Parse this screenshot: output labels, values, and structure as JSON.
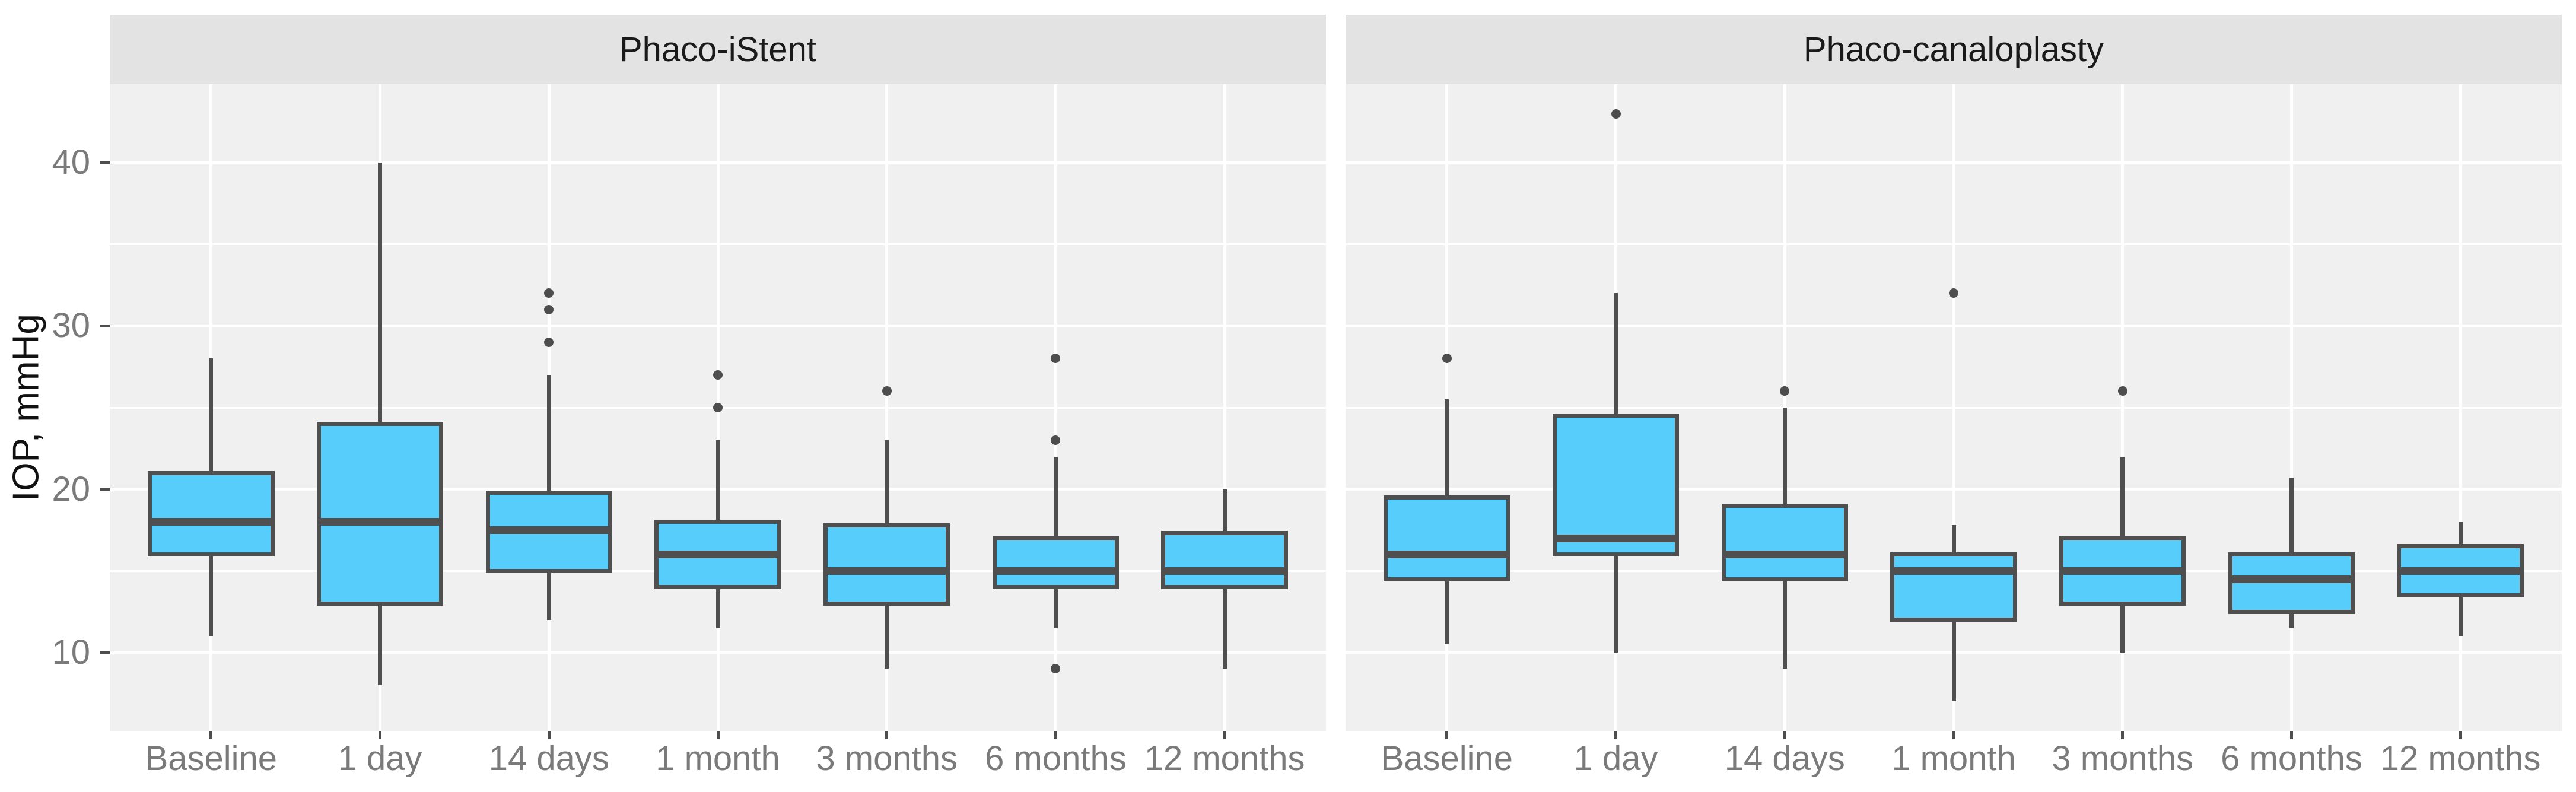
{
  "chart_data": {
    "type": "boxplot",
    "title": "",
    "xlabel": "",
    "ylabel": "IOP, mmHg",
    "categories": [
      "Baseline",
      "1 day",
      "14 days",
      "1 month",
      "3 months",
      "6 months",
      "12 months"
    ],
    "y_ticks": [
      10,
      20,
      30,
      40
    ],
    "y_minor_ticks": [
      15,
      25,
      35
    ],
    "ylim": [
      5.2,
      44.8
    ],
    "grid": true,
    "legend": "none",
    "facets": [
      {
        "label": "Phaco-iStent",
        "boxes": [
          {
            "category": "Baseline",
            "min": 11,
            "q1": 16,
            "median": 18,
            "q3": 21,
            "max": 28,
            "outliers": []
          },
          {
            "category": "1 day",
            "min": 8,
            "q1": 13,
            "median": 18,
            "q3": 24,
            "max": 40,
            "outliers": []
          },
          {
            "category": "14 days",
            "min": 12,
            "q1": 15,
            "median": 17.5,
            "q3": 19.8,
            "max": 27,
            "outliers": [
              29,
              31,
              32
            ]
          },
          {
            "category": "1 month",
            "min": 11.5,
            "q1": 14,
            "median": 16,
            "q3": 18,
            "max": 23,
            "outliers": [
              25,
              27
            ]
          },
          {
            "category": "3 months",
            "min": 9,
            "q1": 13,
            "median": 15,
            "q3": 17.8,
            "max": 23,
            "outliers": [
              26
            ]
          },
          {
            "category": "6 months",
            "min": 11.5,
            "q1": 14,
            "median": 15,
            "q3": 17,
            "max": 22,
            "outliers": [
              9,
              23,
              28
            ]
          },
          {
            "category": "12 months",
            "min": 9,
            "q1": 14,
            "median": 15,
            "q3": 17.3,
            "max": 20,
            "outliers": []
          }
        ]
      },
      {
        "label": "Phaco-canaloplasty",
        "boxes": [
          {
            "category": "Baseline",
            "min": 10.5,
            "q1": 14.5,
            "median": 16,
            "q3": 19.5,
            "max": 25.5,
            "outliers": [
              28
            ]
          },
          {
            "category": "1 day",
            "min": 10,
            "q1": 16,
            "median": 17,
            "q3": 24.5,
            "max": 32,
            "outliers": [
              43
            ]
          },
          {
            "category": "14 days",
            "min": 9,
            "q1": 14.5,
            "median": 16,
            "q3": 19,
            "max": 25,
            "outliers": [
              26
            ]
          },
          {
            "category": "1 month",
            "min": 7,
            "q1": 12,
            "median": 15,
            "q3": 16,
            "max": 17.8,
            "outliers": [
              32
            ]
          },
          {
            "category": "3 months",
            "min": 10,
            "q1": 13,
            "median": 15,
            "q3": 17,
            "max": 22,
            "outliers": [
              26
            ]
          },
          {
            "category": "6 months",
            "min": 11.5,
            "q1": 12.5,
            "median": 14.5,
            "q3": 16,
            "max": 20.7,
            "outliers": []
          },
          {
            "category": "12 months",
            "min": 11,
            "q1": 13.5,
            "median": 15,
            "q3": 16.5,
            "max": 18,
            "outliers": []
          }
        ]
      }
    ],
    "colors": {
      "box_fill": "#57CDFB",
      "box_stroke": "#4F4F4F",
      "outlier": "#4D4D4D",
      "panel_bg": "#F0F0F0",
      "strip_bg": "#E3E3E3",
      "gridline": "#FFFFFF",
      "tick_mark": "#4D4D4D",
      "tick_text": "#7A7A7A",
      "strip_text": "#1A1A1A",
      "axis_title_text": "#111111"
    }
  }
}
